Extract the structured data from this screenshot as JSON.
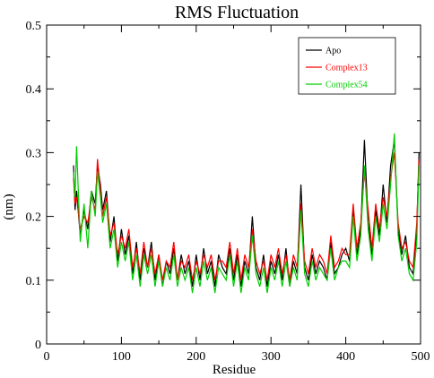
{
  "chart_data": {
    "type": "line",
    "title": "RMS Fluctuation",
    "xlabel": "Residue",
    "ylabel": "(nm)",
    "xlim": [
      0,
      500
    ],
    "ylim": [
      0,
      0.5
    ],
    "xticks": [
      0,
      100,
      200,
      300,
      400,
      500
    ],
    "yticks": [
      0,
      0.1,
      0.2,
      0.3,
      0.4,
      0.5
    ],
    "xtick_labels": [
      "0",
      "100",
      "200",
      "300",
      "400",
      "500"
    ],
    "ytick_labels": [
      "0",
      "0.1",
      "0.2",
      "0.3",
      "0.4",
      "0.5"
    ],
    "grid": false,
    "legend_position": "top-right",
    "series": [
      {
        "name": "Apo",
        "color": "#000000",
        "x": [
          36,
          38,
          40,
          45,
          50,
          55,
          60,
          65,
          68,
          72,
          75,
          80,
          85,
          90,
          95,
          100,
          105,
          110,
          115,
          120,
          125,
          130,
          135,
          140,
          145,
          150,
          155,
          160,
          165,
          170,
          175,
          180,
          185,
          190,
          195,
          200,
          205,
          210,
          215,
          220,
          225,
          230,
          235,
          240,
          245,
          250,
          255,
          260,
          265,
          270,
          275,
          280,
          285,
          290,
          295,
          300,
          305,
          310,
          315,
          320,
          325,
          330,
          335,
          340,
          345,
          350,
          355,
          360,
          365,
          370,
          375,
          380,
          385,
          390,
          395,
          400,
          405,
          410,
          415,
          420,
          425,
          430,
          435,
          440,
          445,
          450,
          455,
          460,
          465,
          470,
          475,
          480,
          485,
          490,
          495,
          498
        ],
        "y": [
          0.28,
          0.21,
          0.24,
          0.17,
          0.21,
          0.18,
          0.24,
          0.22,
          0.28,
          0.25,
          0.21,
          0.24,
          0.16,
          0.2,
          0.13,
          0.18,
          0.14,
          0.17,
          0.11,
          0.16,
          0.1,
          0.15,
          0.12,
          0.16,
          0.1,
          0.14,
          0.09,
          0.13,
          0.11,
          0.15,
          0.1,
          0.14,
          0.11,
          0.13,
          0.09,
          0.14,
          0.1,
          0.15,
          0.11,
          0.13,
          0.09,
          0.14,
          0.12,
          0.11,
          0.15,
          0.1,
          0.14,
          0.09,
          0.13,
          0.11,
          0.2,
          0.12,
          0.1,
          0.14,
          0.09,
          0.13,
          0.11,
          0.14,
          0.1,
          0.15,
          0.09,
          0.13,
          0.11,
          0.25,
          0.12,
          0.1,
          0.14,
          0.11,
          0.13,
          0.12,
          0.1,
          0.16,
          0.11,
          0.12,
          0.14,
          0.15,
          0.13,
          0.21,
          0.14,
          0.18,
          0.32,
          0.19,
          0.14,
          0.21,
          0.17,
          0.25,
          0.19,
          0.28,
          0.32,
          0.18,
          0.14,
          0.17,
          0.12,
          0.11,
          0.18,
          0.3
        ]
      },
      {
        "name": "Complex13",
        "color": "#ff0000",
        "x": [
          36,
          38,
          40,
          45,
          50,
          55,
          60,
          65,
          68,
          72,
          75,
          80,
          85,
          90,
          95,
          100,
          105,
          110,
          115,
          120,
          125,
          130,
          135,
          140,
          145,
          150,
          155,
          160,
          165,
          170,
          175,
          180,
          185,
          190,
          195,
          200,
          205,
          210,
          215,
          220,
          225,
          230,
          235,
          240,
          245,
          250,
          255,
          260,
          265,
          270,
          275,
          280,
          285,
          290,
          295,
          300,
          305,
          310,
          315,
          320,
          325,
          330,
          335,
          340,
          345,
          350,
          355,
          360,
          365,
          370,
          375,
          380,
          385,
          390,
          395,
          400,
          405,
          410,
          415,
          420,
          425,
          430,
          435,
          440,
          445,
          450,
          455,
          460,
          465,
          470,
          475,
          480,
          485,
          490,
          495,
          498
        ],
        "y": [
          0.26,
          0.22,
          0.23,
          0.18,
          0.2,
          0.19,
          0.23,
          0.21,
          0.29,
          0.24,
          0.2,
          0.23,
          0.17,
          0.19,
          0.14,
          0.17,
          0.15,
          0.18,
          0.12,
          0.15,
          0.11,
          0.16,
          0.12,
          0.15,
          0.11,
          0.14,
          0.1,
          0.13,
          0.12,
          0.16,
          0.1,
          0.13,
          0.12,
          0.14,
          0.1,
          0.13,
          0.11,
          0.14,
          0.12,
          0.14,
          0.1,
          0.13,
          0.13,
          0.12,
          0.16,
          0.11,
          0.15,
          0.1,
          0.14,
          0.12,
          0.18,
          0.13,
          0.11,
          0.13,
          0.1,
          0.14,
          0.12,
          0.15,
          0.11,
          0.14,
          0.1,
          0.14,
          0.12,
          0.22,
          0.13,
          0.11,
          0.15,
          0.12,
          0.14,
          0.13,
          0.11,
          0.17,
          0.12,
          0.13,
          0.15,
          0.14,
          0.14,
          0.22,
          0.15,
          0.19,
          0.27,
          0.21,
          0.15,
          0.22,
          0.18,
          0.23,
          0.2,
          0.26,
          0.3,
          0.19,
          0.15,
          0.16,
          0.13,
          0.12,
          0.19,
          0.29
        ]
      },
      {
        "name": "Complex54",
        "color": "#00cc00",
        "x": [
          36,
          38,
          40,
          45,
          50,
          55,
          60,
          65,
          68,
          72,
          75,
          80,
          85,
          90,
          95,
          100,
          105,
          110,
          115,
          120,
          125,
          130,
          135,
          140,
          145,
          150,
          155,
          160,
          165,
          170,
          175,
          180,
          185,
          190,
          195,
          200,
          205,
          210,
          215,
          220,
          225,
          230,
          235,
          240,
          245,
          250,
          255,
          260,
          265,
          270,
          275,
          280,
          285,
          290,
          295,
          300,
          305,
          310,
          315,
          320,
          325,
          330,
          335,
          340,
          345,
          350,
          355,
          360,
          365,
          370,
          375,
          380,
          385,
          390,
          395,
          400,
          405,
          410,
          415,
          420,
          425,
          430,
          435,
          440,
          445,
          450,
          455,
          460,
          465,
          470,
          475,
          480,
          485,
          490,
          495,
          498
        ],
        "y": [
          0.27,
          0.23,
          0.31,
          0.16,
          0.22,
          0.15,
          0.24,
          0.2,
          0.27,
          0.23,
          0.19,
          0.22,
          0.15,
          0.18,
          0.12,
          0.16,
          0.13,
          0.16,
          0.1,
          0.14,
          0.09,
          0.14,
          0.11,
          0.14,
          0.09,
          0.13,
          0.09,
          0.12,
          0.1,
          0.14,
          0.09,
          0.12,
          0.1,
          0.12,
          0.08,
          0.12,
          0.09,
          0.13,
          0.1,
          0.12,
          0.08,
          0.12,
          0.11,
          0.1,
          0.14,
          0.09,
          0.13,
          0.08,
          0.12,
          0.1,
          0.17,
          0.11,
          0.09,
          0.12,
          0.08,
          0.12,
          0.1,
          0.13,
          0.09,
          0.13,
          0.09,
          0.12,
          0.1,
          0.21,
          0.11,
          0.09,
          0.13,
          0.1,
          0.12,
          0.11,
          0.1,
          0.15,
          0.1,
          0.12,
          0.13,
          0.13,
          0.12,
          0.2,
          0.13,
          0.17,
          0.28,
          0.18,
          0.13,
          0.2,
          0.16,
          0.22,
          0.18,
          0.25,
          0.33,
          0.17,
          0.13,
          0.15,
          0.11,
          0.1,
          0.16,
          0.28
        ]
      }
    ]
  }
}
